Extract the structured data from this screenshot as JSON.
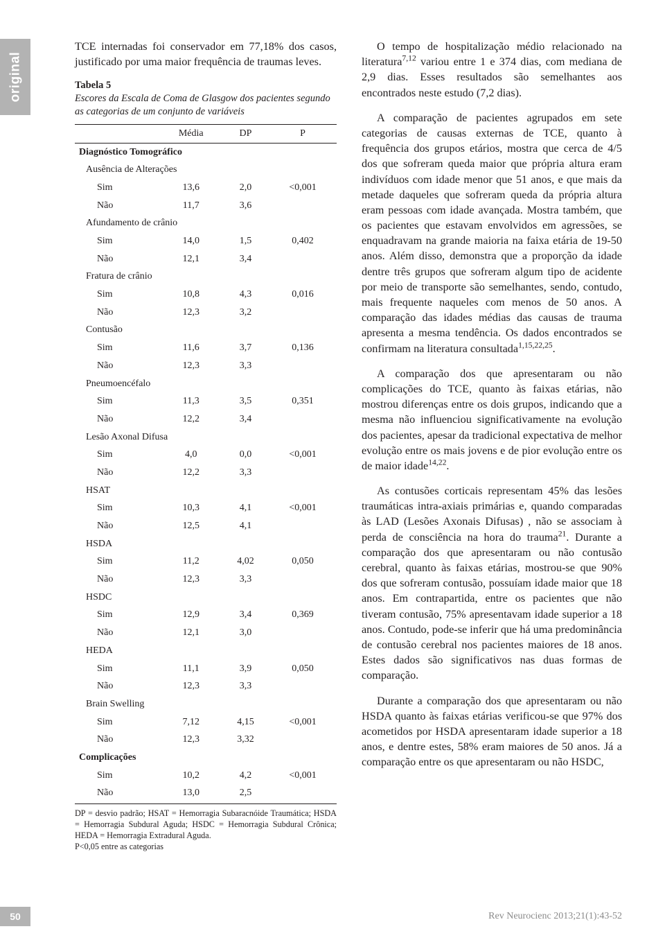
{
  "side_tab": "original",
  "left": {
    "intro_para": "TCE internadas foi conservador em 77,18% dos casos, justificado por uma maior frequência de traumas leves.",
    "table": {
      "number": "Tabela 5",
      "caption": "Escores da Escala de Coma de Glasgow dos pacientes segundo as categorias de um conjunto de variáveis",
      "headers": [
        "",
        "Média",
        "DP",
        "P"
      ],
      "groups": [
        {
          "label": "Diagnóstico Tomográfico",
          "level": "cat",
          "rows": [
            {
              "label": "Ausência de Alterações",
              "level": "subcat",
              "values": [
                {
                  "label": "Sim",
                  "media": "13,6",
                  "dp": "2,0",
                  "p": "<0,001"
                },
                {
                  "label": "Não",
                  "media": "11,7",
                  "dp": "3,6",
                  "p": ""
                }
              ]
            },
            {
              "label": "Afundamento de crânio",
              "level": "subcat",
              "values": [
                {
                  "label": "Sim",
                  "media": "14,0",
                  "dp": "1,5",
                  "p": "0,402"
                },
                {
                  "label": "Não",
                  "media": "12,1",
                  "dp": "3,4",
                  "p": ""
                }
              ]
            },
            {
              "label": "Fratura de crânio",
              "level": "subcat",
              "values": [
                {
                  "label": "Sim",
                  "media": "10,8",
                  "dp": "4,3",
                  "p": "0,016"
                },
                {
                  "label": "Não",
                  "media": "12,3",
                  "dp": "3,2",
                  "p": ""
                }
              ]
            },
            {
              "label": "Contusão",
              "level": "subcat",
              "values": [
                {
                  "label": "Sim",
                  "media": "11,6",
                  "dp": "3,7",
                  "p": "0,136"
                },
                {
                  "label": "Não",
                  "media": "12,3",
                  "dp": "3,3",
                  "p": ""
                }
              ]
            },
            {
              "label": "Pneumoencéfalo",
              "level": "subcat",
              "values": [
                {
                  "label": "Sim",
                  "media": "11,3",
                  "dp": "3,5",
                  "p": "0,351"
                },
                {
                  "label": "Não",
                  "media": "12,2",
                  "dp": "3,4",
                  "p": ""
                }
              ]
            },
            {
              "label": "Lesão Axonal Difusa",
              "level": "subcat",
              "values": [
                {
                  "label": "Sim",
                  "media": "4,0",
                  "dp": "0,0",
                  "p": "<0,001"
                },
                {
                  "label": "Não",
                  "media": "12,2",
                  "dp": "3,3",
                  "p": ""
                }
              ]
            },
            {
              "label": "HSAT",
              "level": "subcat",
              "values": [
                {
                  "label": "Sim",
                  "media": "10,3",
                  "dp": "4,1",
                  "p": "<0,001"
                },
                {
                  "label": "Não",
                  "media": "12,5",
                  "dp": "4,1",
                  "p": ""
                }
              ]
            },
            {
              "label": "HSDA",
              "level": "subcat",
              "values": [
                {
                  "label": "Sim",
                  "media": "11,2",
                  "dp": "4,02",
                  "p": "0,050"
                },
                {
                  "label": "Não",
                  "media": "12,3",
                  "dp": "3,3",
                  "p": ""
                }
              ]
            },
            {
              "label": "HSDC",
              "level": "subcat",
              "values": [
                {
                  "label": "Sim",
                  "media": "12,9",
                  "dp": "3,4",
                  "p": "0,369"
                },
                {
                  "label": "Não",
                  "media": "12,1",
                  "dp": "3,0",
                  "p": ""
                }
              ]
            },
            {
              "label": "HEDA",
              "level": "subcat",
              "values": [
                {
                  "label": "Sim",
                  "media": "11,1",
                  "dp": "3,9",
                  "p": "0,050"
                },
                {
                  "label": "Não",
                  "media": "12,3",
                  "dp": "3,3",
                  "p": ""
                }
              ]
            },
            {
              "label": "Brain Swelling",
              "level": "subcat",
              "values": [
                {
                  "label": "Sim",
                  "media": "7,12",
                  "dp": "4,15",
                  "p": "<0,001"
                },
                {
                  "label": "Não",
                  "media": "12,3",
                  "dp": "3,32",
                  "p": ""
                }
              ]
            }
          ]
        },
        {
          "label": "Complicações",
          "level": "cat",
          "rows": [
            {
              "label": "",
              "level": "valgroup",
              "values": [
                {
                  "label": "Sim",
                  "media": "10,2",
                  "dp": "4,2",
                  "p": "<0,001"
                },
                {
                  "label": "Não",
                  "media": "13,0",
                  "dp": "2,5",
                  "p": ""
                }
              ]
            }
          ]
        }
      ],
      "footnote": "DP = desvio padrão; HSAT = Hemorragia Subaracnóide Traumática; HSDA = Hemorragia Subdural Aguda; HSDC = Hemorragia Subdural Crônica; HEDA = Hemorragia Extradural Aguda.",
      "footnote2": "P<0,05 entre as categorias"
    }
  },
  "right": {
    "p1_a": "O tempo de hospitalização médio relacionado na literatura",
    "p1_sup1": "7,12",
    "p1_b": " variou entre 1 e 374 dias, com mediana de 2,9 dias. Esses resultados são semelhantes aos encontrados neste estudo (7,2 dias).",
    "p2_a": "A comparação de pacientes agrupados em sete categorias de causas externas de TCE, quanto à frequência dos grupos etários, mostra que cerca de 4/5 dos que sofreram queda maior que própria altura eram indivíduos com idade menor que 51 anos, e que mais da metade daqueles que sofreram queda da própria altura eram pessoas com idade avançada. Mostra também, que os pacientes que estavam envolvidos em agressões, se enquadravam na grande maioria na faixa etária de 19-50 anos. Além disso, demonstra que a proporção da idade dentre três grupos que sofreram algum tipo de acidente por meio de transporte são semelhantes, sendo, contudo, mais frequente naqueles com menos de 50 anos. A comparação das idades médias das causas de trauma apresenta a mesma tendência. Os dados encontrados se confirmam na literatura consultada",
    "p2_sup": "1,15,22,25",
    "p2_b": ".",
    "p3_a": "A comparação dos que apresentaram ou não complicações do TCE, quanto às faixas etárias, não mostrou diferenças entre os dois grupos, indicando que a mesma não influenciou significativamente na evolução dos pacientes, apesar da tradicional expectativa de melhor evolução entre os mais jovens e de pior evolução entre os de maior idade",
    "p3_sup": "14,22",
    "p3_b": ".",
    "p4_a": "As contusões corticais representam 45% das lesões traumáticas intra-axiais primárias e, quando comparadas às LAD (Lesões Axonais Difusas) , não se associam à perda de consciência na hora do trauma",
    "p4_sup": "21",
    "p4_b": ". Durante a comparação dos que apresentaram ou não contusão cerebral, quanto às faixas etárias, mostrou-se que 90% dos que sofreram contusão, possuíam idade maior que 18 anos. Em contrapartida, entre os pacientes que não tiveram contusão, 75% apresentavam idade superior a 18 anos. Contudo, pode-se inferir que há uma predominância de contusão cerebral nos pacientes maiores de 18 anos. Estes dados são significativos nas duas formas de comparação.",
    "p5": "Durante a comparação dos que apresentaram ou não HSDA quanto às faixas etárias verificou-se que 97% dos acometidos por HSDA apresentaram idade superior a 18 anos, e dentre estes, 58% eram maiores de 50 anos. Já a comparação entre os que apresentaram ou não HSDC,"
  },
  "footer": {
    "page": "50",
    "citation": "Rev Neurocienc 2013;21(1):43-52"
  },
  "colors": {
    "tab_bg": "#b3b3b3",
    "tab_fg": "#ffffff",
    "text": "#231f20",
    "footer_citation": "#8a8a8a"
  }
}
